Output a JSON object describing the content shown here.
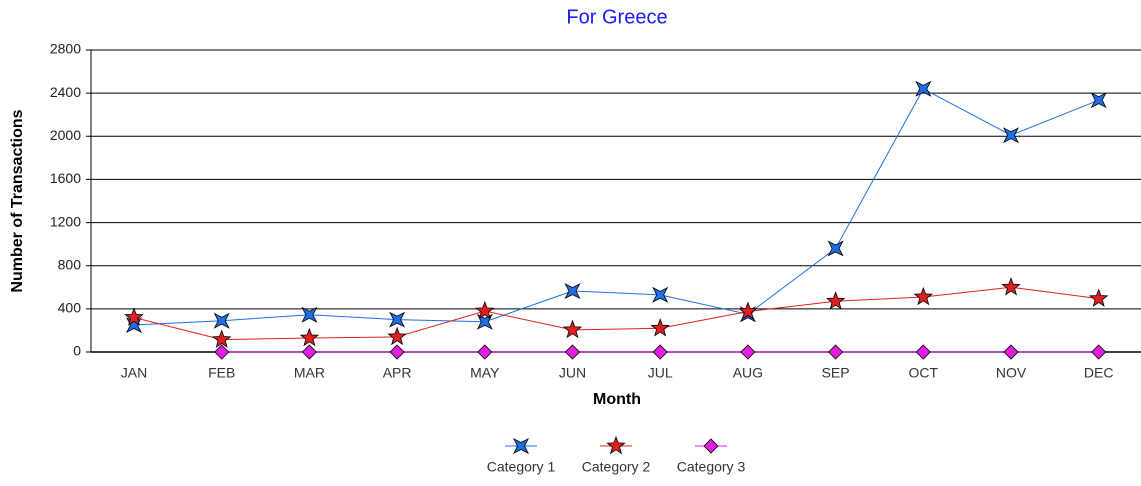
{
  "chart_data": {
    "type": "line",
    "title": "For Greece",
    "x_label": "Month",
    "y_label": "Number of Transactions",
    "categories": [
      "JAN",
      "FEB",
      "MAR",
      "APR",
      "MAY",
      "JUN",
      "JUL",
      "AUG",
      "SEP",
      "OCT",
      "NOV",
      "DEC"
    ],
    "series": [
      {
        "name": "Category 1",
        "color": "#1f6fe0",
        "marker": "star4",
        "values": [
          250,
          290,
          345,
          300,
          280,
          565,
          530,
          350,
          960,
          2440,
          2010,
          2335
        ]
      },
      {
        "name": "Category 2",
        "color": "#e02020",
        "marker": "star5",
        "values": [
          320,
          115,
          130,
          140,
          380,
          205,
          220,
          375,
          470,
          510,
          600,
          495
        ]
      },
      {
        "name": "Category 3",
        "color": "#e020e0",
        "marker": "diamond",
        "values": [
          null,
          0,
          0,
          0,
          0,
          0,
          0,
          0,
          0,
          0,
          0,
          0
        ]
      }
    ],
    "ylim": [
      0,
      2800
    ],
    "yticks": [
      0,
      400,
      800,
      1200,
      1600,
      2000,
      2400,
      2800
    ],
    "grid": true,
    "legend": "bottom"
  }
}
